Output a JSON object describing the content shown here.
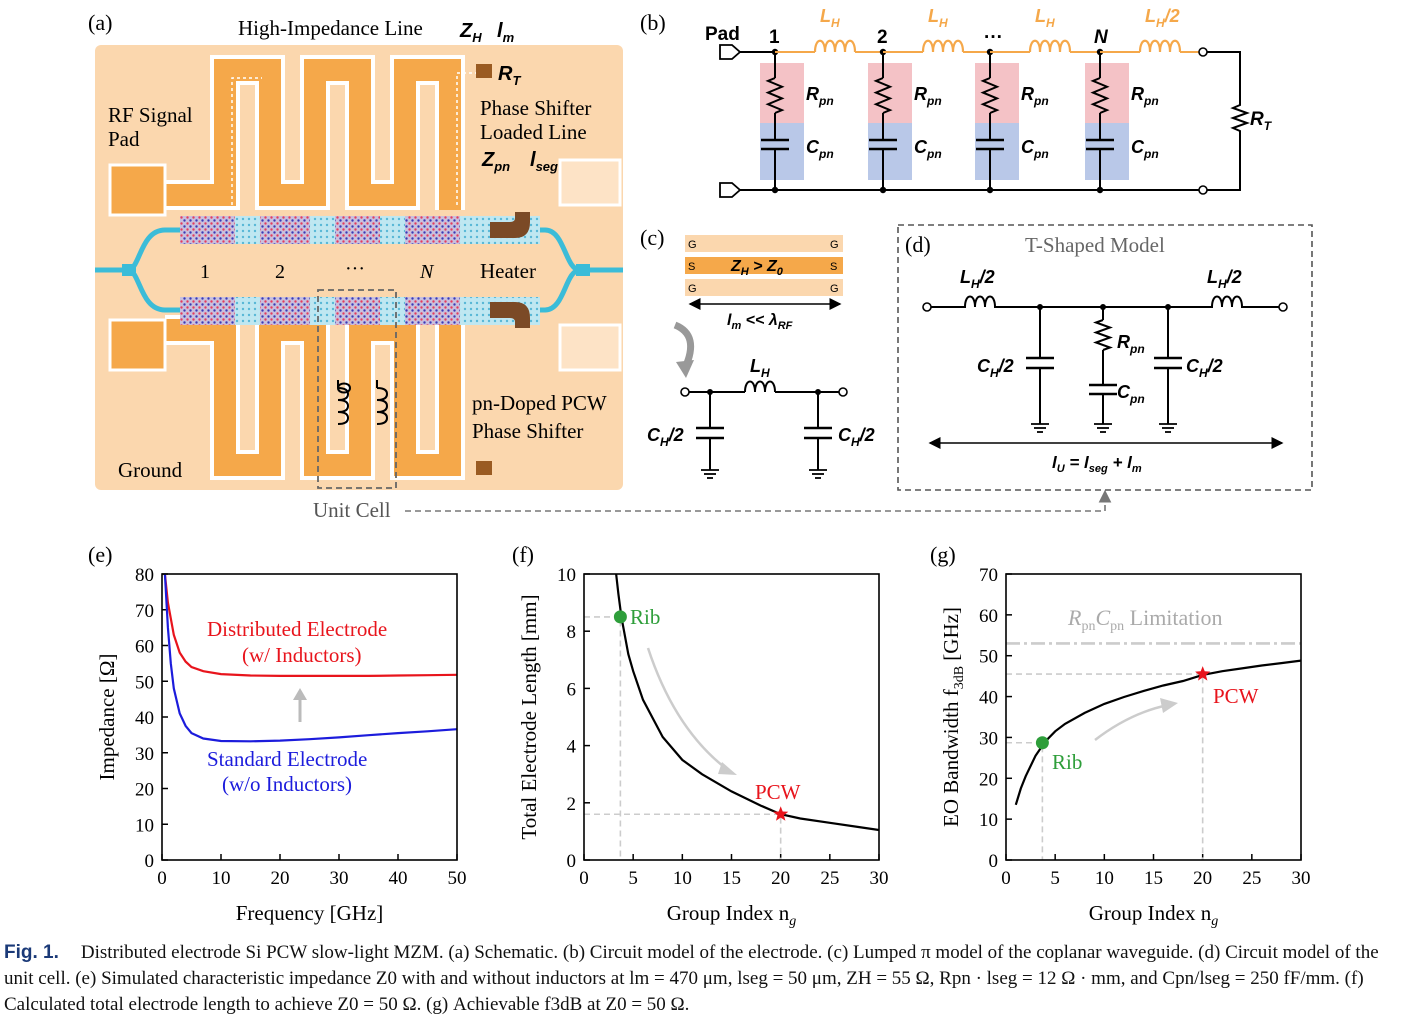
{
  "panels": {
    "a": {
      "label": "(a)",
      "high_impedance": "High-Impedance Line",
      "zh": "Z",
      "zh_sub": "H",
      "lm": "l",
      "lm_sub": "m",
      "rt": "R",
      "rt_sub": "T",
      "rf_pad_1": "RF Signal",
      "rf_pad_2": "Pad",
      "psll_1": "Phase Shifter",
      "psll_2": "Loaded Line",
      "zpn": "Z",
      "zpn_sub": "pn",
      "lseg": "l",
      "lseg_sub": "seg",
      "n1": "1",
      "n2": "2",
      "ndots": "···",
      "nN": "N",
      "heater": "Heater",
      "pn_1": "pn-Doped PCW",
      "pn_2": "Phase Shifter",
      "ground": "Ground",
      "unit_cell": "Unit Cell"
    },
    "b": {
      "label": "(b)",
      "pad": "Pad",
      "nodes": [
        "1",
        "2",
        "···",
        "N"
      ],
      "lh": "L",
      "lh_sub": "H",
      "lh_half_sub": "H",
      "lh_half_suffix": "/2",
      "rpn": "R",
      "rpn_sub": "pn",
      "cpn": "C",
      "cpn_sub": "pn",
      "rt": "R",
      "rt_sub": "T"
    },
    "c": {
      "label": "(c)",
      "g": "G",
      "s": "S",
      "zh_cmp_1": "Z",
      "zh_cmp_sub1": "H",
      "zh_cmp_2": " > Z",
      "zh_cmp_sub2": "0",
      "lm_1": "l",
      "lm_sub": "m",
      "lm_2": " << λ",
      "lm_sub2": "RF",
      "lh": "L",
      "lh_sub": "H",
      "ch": "C",
      "ch_sub": "H",
      "ch_suffix": "/2"
    },
    "d": {
      "label": "(d)",
      "title": "T-Shaped Model",
      "lh": "L",
      "lh_sub": "H",
      "lh_suffix": "/2",
      "ch": "C",
      "ch_sub": "H",
      "ch_suffix": "/2",
      "rpn": "R",
      "rpn_sub": "pn",
      "cpn": "C",
      "cpn_sub": "pn",
      "lu_1": "l",
      "lu_sub": "U",
      "lu_2": " = l",
      "lu_sub2": "seg",
      "lu_3": " + l",
      "lu_sub3": "m"
    },
    "e": {
      "label": "(e)",
      "ann_red_1": "Distributed Electrode",
      "ann_red_2": "(w/ Inductors)",
      "ann_blue_1": "Standard Electrode",
      "ann_blue_2": "(w/o Inductors)"
    },
    "f": {
      "label": "(f)",
      "rib": "Rib",
      "pcw": "PCW"
    },
    "g": {
      "label": "(g)",
      "rib": "Rib",
      "pcw": "PCW",
      "limit_1": "R",
      "limit_sub1": "pn",
      "limit_2": "C",
      "limit_sub2": "pn",
      "limit_3": " Limitation"
    }
  },
  "colors": {
    "copper": "#f5a84a",
    "copper_light": "#fbd7ae",
    "waveguide": "#3bbcd8",
    "red": "#e8141c",
    "blue": "#1c1cdc",
    "green": "#2e9e3a",
    "rpn_fill": "#f4c2c6",
    "cpn_fill": "#b9c8e8"
  },
  "chart_data": [
    {
      "type": "line",
      "panel": "(e)",
      "xlabel": "Frequency [GHz]",
      "ylabel": "Impedance [Ω]",
      "xlim": [
        0,
        50
      ],
      "ylim": [
        0,
        80
      ],
      "xticks": [
        0,
        10,
        20,
        30,
        40,
        50
      ],
      "yticks": [
        0,
        10,
        20,
        30,
        40,
        50,
        60,
        70,
        80
      ],
      "series": [
        {
          "name": "Distributed Electrode (w/ Inductors)",
          "color": "#e8141c",
          "x": [
            0.5,
            1,
            2,
            3,
            4,
            5,
            7,
            10,
            15,
            20,
            25,
            30,
            35,
            40,
            45,
            50
          ],
          "y": [
            80,
            72,
            63,
            58,
            55.5,
            54,
            52.8,
            52,
            51.6,
            51.5,
            51.5,
            51.5,
            51.5,
            51.6,
            51.7,
            51.8
          ]
        },
        {
          "name": "Standard Electrode (w/o Inductors)",
          "color": "#1c1cdc",
          "x": [
            0.5,
            1,
            1.5,
            2,
            3,
            4,
            5,
            7,
            10,
            15,
            20,
            25,
            30,
            35,
            40,
            45,
            50
          ],
          "y": [
            80,
            65,
            55,
            48,
            41,
            37.5,
            35.5,
            34,
            33.3,
            33.2,
            33.4,
            33.8,
            34.3,
            34.9,
            35.5,
            36,
            36.6
          ]
        }
      ]
    },
    {
      "type": "line",
      "panel": "(f)",
      "xlabel": "Group Index n",
      "xlabel_sub": "g",
      "ylabel": "Total Electrode Length [mm]",
      "xlim": [
        0,
        30
      ],
      "ylim": [
        0,
        10
      ],
      "xticks": [
        0,
        5,
        10,
        15,
        20,
        25,
        30
      ],
      "yticks": [
        0,
        2,
        4,
        6,
        8,
        10
      ],
      "series": [
        {
          "name": "",
          "color": "#000000",
          "x": [
            3.2,
            3.5,
            3.8,
            4.5,
            5,
            6,
            8,
            10,
            12,
            15,
            18,
            20,
            22,
            25,
            28,
            30
          ],
          "y": [
            10.2,
            9.3,
            8.5,
            7.2,
            6.6,
            5.6,
            4.3,
            3.5,
            3.0,
            2.4,
            1.9,
            1.6,
            1.45,
            1.3,
            1.15,
            1.05
          ]
        }
      ],
      "points": [
        {
          "label": "Rib",
          "x": 3.7,
          "y": 8.5,
          "color": "#2e9e3a"
        },
        {
          "label": "PCW",
          "x": 20,
          "y": 1.6,
          "color": "#e8141c"
        }
      ]
    },
    {
      "type": "line",
      "panel": "(g)",
      "xlabel": "Group Index n",
      "xlabel_sub": "g",
      "ylabel": "EO Bandwidth f",
      "ylabel_sub": "3dB",
      "ylabel_tail": " [GHz]",
      "xlim": [
        0,
        30
      ],
      "ylim": [
        0,
        70
      ],
      "xticks": [
        0,
        5,
        10,
        15,
        20,
        25,
        30
      ],
      "yticks": [
        0,
        10,
        20,
        30,
        40,
        50,
        60,
        70
      ],
      "limitation_value": 53,
      "series": [
        {
          "name": "",
          "color": "#000000",
          "x": [
            1,
            1.5,
            2,
            3,
            4,
            5,
            6,
            8,
            10,
            12,
            14,
            16,
            18,
            20,
            22,
            24,
            26,
            28,
            30
          ],
          "y": [
            13.5,
            17.5,
            20.5,
            25.5,
            29,
            31.5,
            33.3,
            36,
            38.2,
            39.9,
            41.4,
            42.7,
            43.8,
            45.3,
            46.2,
            46.9,
            47.6,
            48.2,
            48.8
          ]
        }
      ],
      "points": [
        {
          "label": "Rib",
          "x": 3.7,
          "y": 28.7,
          "color": "#2e9e3a"
        },
        {
          "label": "PCW",
          "x": 20,
          "y": 45.5,
          "color": "#e8141c"
        }
      ]
    }
  ],
  "caption": {
    "fig": "Fig. 1.",
    "text": "Distributed electrode Si PCW slow-light MZM. (a) Schematic. (b) Circuit model of the electrode. (c) Lumped π model of the coplanar waveguide. (d) Circuit model of the unit cell. (e) Simulated characteristic impedance Z0 with and without inductors at lm = 470 μm, lseg = 50 μm, ZH = 55 Ω, Rpn · lseg = 12 Ω · mm, and Cpn/lseg = 250 fF/mm. (f) Calculated total electrode length to achieve Z0 = 50 Ω. (g) Achievable f3dB at Z0 = 50 Ω."
  }
}
